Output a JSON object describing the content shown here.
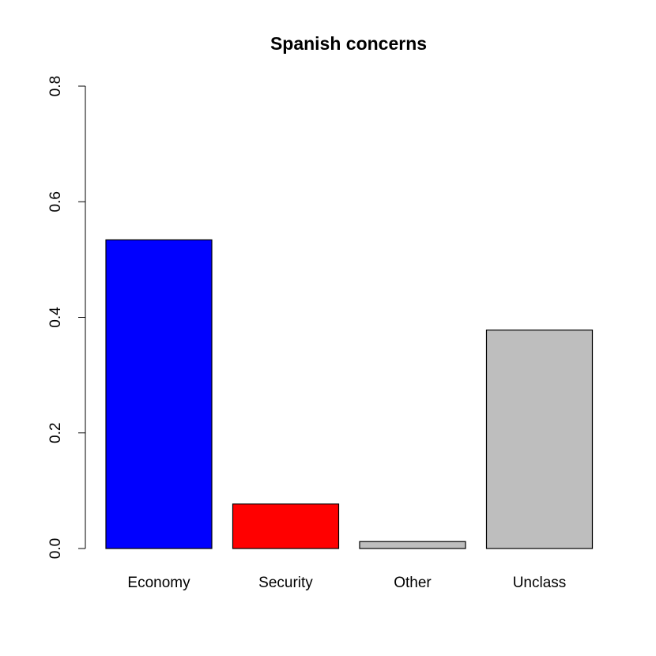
{
  "chart_data": {
    "type": "bar",
    "title": "Spanish concerns",
    "xlabel": "",
    "ylabel": "",
    "categories": [
      "Economy",
      "Security",
      "Other",
      "Unclass"
    ],
    "values": [
      0.534,
      0.077,
      0.012,
      0.378
    ],
    "colors": [
      "#0000ff",
      "#ff0000",
      "#bebebe",
      "#bebebe"
    ],
    "bar_border_color": "#000000",
    "ylim": [
      0,
      0.8
    ],
    "y_ticks": [
      0.0,
      0.2,
      0.4,
      0.6,
      0.8
    ],
    "y_tick_labels": [
      "0.0",
      "0.2",
      "0.4",
      "0.6",
      "0.8"
    ],
    "grid": false,
    "legend": "none"
  }
}
